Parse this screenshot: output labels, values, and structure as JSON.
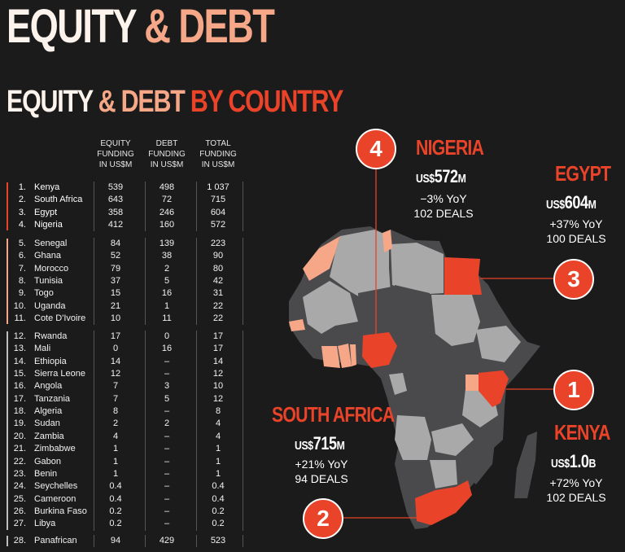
{
  "title": {
    "part1": "EQUITY",
    "part2": "& DEBT"
  },
  "subtitle": {
    "part1": "EQUITY",
    "part2": "& DEBT",
    "part3": "BY COUNTRY"
  },
  "chart_data": {
    "type": "table",
    "columns": [
      "EQUITY FUNDING IN US$M",
      "DEBT FUNDING IN US$M",
      "TOTAL FUNDING IN US$M"
    ],
    "column_lines": [
      [
        "EQUITY",
        "FUNDING",
        "IN US$M"
      ],
      [
        "DEBT",
        "FUNDING",
        "IN US$M"
      ],
      [
        "TOTAL",
        "FUNDING",
        "IN US$M"
      ]
    ],
    "rows": [
      {
        "rank": "1.",
        "name": "Kenya",
        "equity": "539",
        "debt": "498",
        "total": "1 037"
      },
      {
        "rank": "2.",
        "name": "South Africa",
        "equity": "643",
        "debt": "72",
        "total": "715"
      },
      {
        "rank": "3.",
        "name": "Egypt",
        "equity": "358",
        "debt": "246",
        "total": "604"
      },
      {
        "rank": "4.",
        "name": "Nigeria",
        "equity": "412",
        "debt": "160",
        "total": "572"
      },
      {
        "rank": "5.",
        "name": "Senegal",
        "equity": "84",
        "debt": "139",
        "total": "223"
      },
      {
        "rank": "6.",
        "name": "Ghana",
        "equity": "52",
        "debt": "38",
        "total": "90"
      },
      {
        "rank": "7.",
        "name": "Morocco",
        "equity": "79",
        "debt": "2",
        "total": "80"
      },
      {
        "rank": "8.",
        "name": "Tunisia",
        "equity": "37",
        "debt": "5",
        "total": "42"
      },
      {
        "rank": "9.",
        "name": "Togo",
        "equity": "15",
        "debt": "16",
        "total": "31"
      },
      {
        "rank": "10.",
        "name": "Uganda",
        "equity": "21",
        "debt": "1",
        "total": "22"
      },
      {
        "rank": "11.",
        "name": "Cote D'Ivoire",
        "equity": "10",
        "debt": "11",
        "total": "22"
      },
      {
        "rank": "12.",
        "name": "Rwanda",
        "equity": "17",
        "debt": "0",
        "total": "17"
      },
      {
        "rank": "13.",
        "name": "Mali",
        "equity": "0",
        "debt": "16",
        "total": "17"
      },
      {
        "rank": "14.",
        "name": "Ethiopia",
        "equity": "14",
        "debt": "–",
        "total": "14"
      },
      {
        "rank": "15.",
        "name": "Sierra Leone",
        "equity": "12",
        "debt": "–",
        "total": "12"
      },
      {
        "rank": "16.",
        "name": "Angola",
        "equity": "7",
        "debt": "3",
        "total": "10"
      },
      {
        "rank": "17.",
        "name": "Tanzania",
        "equity": "7",
        "debt": "5",
        "total": "12"
      },
      {
        "rank": "18.",
        "name": "Algeria",
        "equity": "8",
        "debt": "–",
        "total": "8"
      },
      {
        "rank": "19.",
        "name": "Sudan",
        "equity": "2",
        "debt": "2",
        "total": "4"
      },
      {
        "rank": "20.",
        "name": "Zambia",
        "equity": "4",
        "debt": "–",
        "total": "4"
      },
      {
        "rank": "21.",
        "name": "Zimbabwe",
        "equity": "1",
        "debt": "–",
        "total": "1"
      },
      {
        "rank": "22.",
        "name": "Gabon",
        "equity": "1",
        "debt": "–",
        "total": "1"
      },
      {
        "rank": "23.",
        "name": "Benin",
        "equity": "1",
        "debt": "–",
        "total": "1"
      },
      {
        "rank": "24.",
        "name": "Seychelles",
        "equity": "0.4",
        "debt": "–",
        "total": "0.4"
      },
      {
        "rank": "25.",
        "name": "Cameroon",
        "equity": "0.4",
        "debt": "–",
        "total": "0.4"
      },
      {
        "rank": "26.",
        "name": "Burkina Faso",
        "equity": "0.2",
        "debt": "–",
        "total": "0.2"
      },
      {
        "rank": "27.",
        "name": "Libya",
        "equity": "0.2",
        "debt": "–",
        "total": "0.2"
      },
      {
        "rank": "28.",
        "name": "Panafrican",
        "equity": "94",
        "debt": "429",
        "total": "523"
      }
    ],
    "tier_colors": [
      "#e9432a",
      "#f5a787",
      "#bdbdbd",
      "#bdbdbd"
    ]
  },
  "callouts": {
    "nigeria": {
      "badge": "4",
      "name": "NIGERIA",
      "currency": "US$",
      "amount": "572",
      "unit": "M",
      "yoy": "−3% YoY",
      "deals": "102 DEALS"
    },
    "egypt": {
      "badge": "3",
      "name": "EGYPT",
      "currency": "US$",
      "amount": "604",
      "unit": "M",
      "yoy": "+37% YoY",
      "deals": "100 DEALS"
    },
    "kenya": {
      "badge": "1",
      "name": "KENYA",
      "currency": "US$",
      "amount": "1.0",
      "unit": "B",
      "yoy": "+72% YoY",
      "deals": "102 DEALS"
    },
    "south_africa": {
      "badge": "2",
      "name": "SOUTH AFRICA",
      "currency": "US$",
      "amount": "715",
      "unit": "M",
      "yoy": "+21% YoY",
      "deals": "94 DEALS"
    }
  },
  "colors": {
    "background": "#1c1b1b",
    "accent_red": "#e9432a",
    "accent_peach": "#f5a787",
    "map_grey_light": "#a9a9a9",
    "map_grey_dark": "#4a4a4d"
  }
}
